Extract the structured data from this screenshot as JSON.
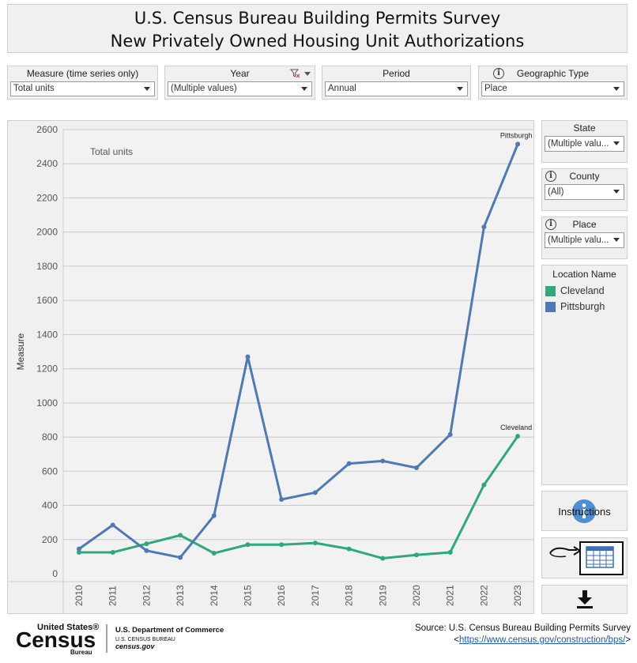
{
  "title": {
    "line1": "U.S. Census Bureau Building Permits Survey",
    "line2": "New Privately Owned Housing Unit Authorizations"
  },
  "filters": {
    "measure": {
      "label": "Measure (time series only)",
      "value": "Total units"
    },
    "year": {
      "label": "Year",
      "value": "(Multiple values)"
    },
    "period": {
      "label": "Period",
      "value": "Annual"
    },
    "geo_type": {
      "label": "Geographic Type",
      "value": "Place"
    }
  },
  "side": {
    "state": {
      "label": "State",
      "value": "(Multiple valu..."
    },
    "county": {
      "label": "County",
      "value": "(All)"
    },
    "place": {
      "label": "Place",
      "value": "(Multiple valu..."
    },
    "legend_title": "Location Name",
    "instructions_label": "Instructions"
  },
  "chart_data": {
    "type": "line",
    "ylabel": "Measure",
    "annotation": "Total units",
    "ylim": [
      0,
      2600
    ],
    "yticks": [
      0,
      200,
      400,
      600,
      800,
      1000,
      1200,
      1400,
      1600,
      1800,
      2000,
      2200,
      2400,
      2600
    ],
    "categories": [
      "2010",
      "2011",
      "2012",
      "2013",
      "2014",
      "2015",
      "2016",
      "2017",
      "2018",
      "2019",
      "2020",
      "2021",
      "2022",
      "2023"
    ],
    "series": [
      {
        "name": "Pittsburgh",
        "color": "#4e79b5",
        "values": [
          145,
          285,
          135,
          95,
          340,
          1270,
          435,
          475,
          645,
          660,
          620,
          815,
          2030,
          2515
        ]
      },
      {
        "name": "Cleveland",
        "color": "#2fa97a",
        "values": [
          125,
          125,
          175,
          225,
          120,
          170,
          170,
          180,
          145,
          90,
          110,
          125,
          520,
          805
        ]
      }
    ],
    "end_labels": [
      "Pittsburgh",
      "Cleveland"
    ]
  },
  "footer": {
    "census_top": "United States®",
    "census_big": "Census",
    "census_sub": "Bureau",
    "dept": "U.S. Department of Commerce",
    "bureau": "U.S. CENSUS BUREAU",
    "site": "census.gov",
    "source": "Source: U.S. Census Bureau Building Permits Survey",
    "link": "https://www.census.gov/construction/bps/"
  }
}
